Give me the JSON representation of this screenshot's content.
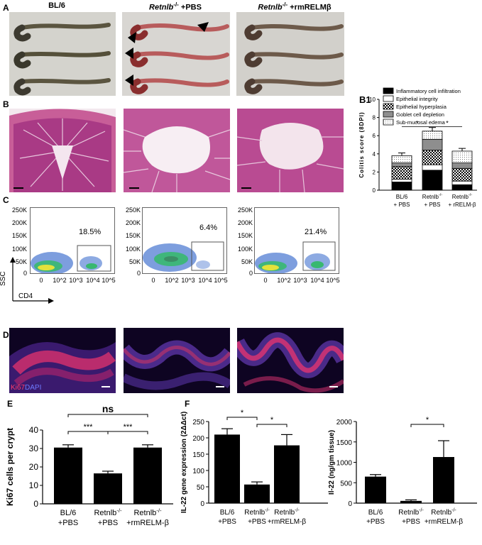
{
  "panel_letters": {
    "A": "A",
    "B": "B",
    "B1": "B1",
    "C": "C",
    "D": "D",
    "E": "E",
    "F": "F"
  },
  "columns": [
    {
      "main": "BL/6",
      "italic": "",
      "rest": ""
    },
    {
      "main": "",
      "italic": "Retnlb",
      "sup": "-/-",
      "rest": " +PBS"
    },
    {
      "main": "",
      "italic": "Retnlb",
      "sup": "-/-",
      "rest": " +rmRELMβ"
    }
  ],
  "panelC": {
    "percents": [
      "18.5%",
      "6.4%",
      "21.4%"
    ],
    "yticks": [
      "250K",
      "200K",
      "150K",
      "100K",
      "50K",
      "0"
    ],
    "xticks": [
      "0",
      "10^2",
      "10^3",
      "10^4",
      "10^5"
    ],
    "ylabel": "SSC",
    "xlabel": "CD4"
  },
  "panelD": {
    "stain1": "Ki67",
    "stain2": "DAPI"
  },
  "chart_data": [
    {
      "id": "B1",
      "type": "bar",
      "stacked": true,
      "ylabel": "Colitis score (8DPI)",
      "ylim": [
        0,
        10
      ],
      "yticks": [
        "0",
        "2",
        "4",
        "6",
        "8",
        "10"
      ],
      "categories": [
        [
          "BL/6",
          "+ PBS"
        ],
        [
          "Retnlb-/-",
          "+ PBS"
        ],
        [
          "Retnlb-/-",
          "+ rRELM-β"
        ]
      ],
      "series": [
        {
          "name": "Inflammatory cell infiltration",
          "values": [
            0.9,
            2.2,
            0.6
          ],
          "color": "#000000",
          "pattern": "solid"
        },
        {
          "name": "Epithelial integrity",
          "values": [
            0.3,
            0.6,
            0.4
          ],
          "color": "#ffffff",
          "pattern": "white"
        },
        {
          "name": "Epithelial hyperplasia",
          "values": [
            1.4,
            1.6,
            1.4
          ],
          "color": "#888888",
          "pattern": "checker"
        },
        {
          "name": "Goblet cell depletion",
          "values": [
            0.4,
            1.2,
            0.6
          ],
          "color": "#999999",
          "pattern": "gray"
        },
        {
          "name": "Sub-mucosal edema",
          "values": [
            0.8,
            0.9,
            1.3
          ],
          "color": "#ffffff",
          "pattern": "dots"
        }
      ],
      "errors": [
        0.3,
        0.4,
        0.3
      ],
      "significance": [
        {
          "from": 0,
          "to": 1,
          "label": "*"
        },
        {
          "from": 1,
          "to": 2,
          "label": "*"
        }
      ]
    },
    {
      "id": "E",
      "type": "bar",
      "ylabel": "Ki67 cells per crypt",
      "ylim": [
        0,
        40
      ],
      "yticks": [
        "0",
        "10",
        "20",
        "30",
        "40"
      ],
      "categories": [
        [
          "BL/6",
          "+PBS"
        ],
        [
          "Retnlb-/-",
          "+PBS"
        ],
        [
          "Retnlb-/-",
          "+rmRELM-β"
        ]
      ],
      "values": [
        30.5,
        16.5,
        30.5
      ],
      "errors": [
        1.5,
        1.2,
        1.5
      ],
      "significance": [
        {
          "from": 0,
          "to": 1,
          "label": "***"
        },
        {
          "from": 1,
          "to": 2,
          "label": "***"
        },
        {
          "from": 0,
          "to": 2,
          "label": "ns"
        }
      ]
    },
    {
      "id": "F1",
      "type": "bar",
      "ylabel": "IL-22 gene expression (2ΔΔct)",
      "ylim": [
        0,
        250
      ],
      "yticks": [
        "0",
        "50",
        "100",
        "150",
        "200",
        "250"
      ],
      "categories": [
        [
          "BL/6",
          "+PBS"
        ],
        [
          "Retnlb-/-",
          "+PBS"
        ],
        [
          "Retnlb-/-",
          "+rmRELM-β"
        ]
      ],
      "values": [
        210,
        57,
        177
      ],
      "errors": [
        18,
        8,
        33
      ],
      "significance": [
        {
          "from": 0,
          "to": 1,
          "label": "*"
        },
        {
          "from": 1,
          "to": 2,
          "label": "*"
        }
      ]
    },
    {
      "id": "F2",
      "type": "bar",
      "ylabel": "Il-22 (ng/gm tissue)",
      "ylim": [
        0,
        2000
      ],
      "yticks": [
        "0",
        "500",
        "1000",
        "1500",
        "2000"
      ],
      "categories": [
        [
          "BL/6",
          "+PBS"
        ],
        [
          "Retnlb-/-",
          "+PBS"
        ],
        [
          "Retnlb-/-",
          "+rmRELM-β"
        ]
      ],
      "values": [
        650,
        55,
        1130
      ],
      "errors": [
        50,
        25,
        400
      ],
      "significance": [
        {
          "from": 1,
          "to": 2,
          "label": "*"
        }
      ]
    }
  ]
}
